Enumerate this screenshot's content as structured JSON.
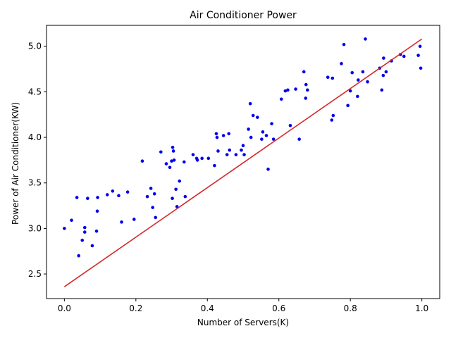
{
  "chart_data": {
    "type": "scatter",
    "title": "Air Conditioner Power",
    "xlabel": "Number of Servers(K)",
    "ylabel": "Power of Air Conditioner(KW)",
    "xlim": [
      -0.05,
      1.05
    ],
    "ylim": [
      2.23,
      5.23
    ],
    "xticks": [
      0.0,
      0.2,
      0.4,
      0.6,
      0.8,
      1.0
    ],
    "xtick_labels": [
      "0.0",
      "0.2",
      "0.4",
      "0.6",
      "0.8",
      "1.0"
    ],
    "yticks": [
      2.5,
      3.0,
      3.5,
      4.0,
      4.5,
      5.0
    ],
    "ytick_labels": [
      "2.5",
      "3.0",
      "3.5",
      "4.0",
      "4.5",
      "5.0"
    ],
    "grid": false,
    "legend": "none",
    "series": [
      {
        "kind": "scatter",
        "color": "#0000ee",
        "points": [
          [
            0.0,
            3.0
          ],
          [
            0.02,
            3.09
          ],
          [
            0.035,
            3.34
          ],
          [
            0.04,
            2.7
          ],
          [
            0.05,
            2.87
          ],
          [
            0.057,
            3.01
          ],
          [
            0.057,
            2.96
          ],
          [
            0.065,
            3.33
          ],
          [
            0.078,
            2.81
          ],
          [
            0.09,
            2.97
          ],
          [
            0.092,
            3.19
          ],
          [
            0.093,
            3.34
          ],
          [
            0.12,
            3.37
          ],
          [
            0.135,
            3.41
          ],
          [
            0.152,
            3.36
          ],
          [
            0.16,
            3.07
          ],
          [
            0.177,
            3.4
          ],
          [
            0.195,
            3.1
          ],
          [
            0.218,
            3.74
          ],
          [
            0.232,
            3.35
          ],
          [
            0.242,
            3.44
          ],
          [
            0.247,
            3.23
          ],
          [
            0.252,
            3.38
          ],
          [
            0.255,
            3.12
          ],
          [
            0.27,
            3.84
          ],
          [
            0.285,
            3.71
          ],
          [
            0.295,
            3.67
          ],
          [
            0.3,
            3.74
          ],
          [
            0.302,
            3.33
          ],
          [
            0.303,
            3.89
          ],
          [
            0.305,
            3.85
          ],
          [
            0.307,
            3.75
          ],
          [
            0.312,
            3.43
          ],
          [
            0.315,
            3.24
          ],
          [
            0.322,
            3.52
          ],
          [
            0.335,
            3.73
          ],
          [
            0.338,
            3.35
          ],
          [
            0.36,
            3.81
          ],
          [
            0.37,
            3.77
          ],
          [
            0.372,
            3.75
          ],
          [
            0.385,
            3.77
          ],
          [
            0.403,
            3.77
          ],
          [
            0.42,
            3.69
          ],
          [
            0.425,
            4.04
          ],
          [
            0.427,
            4.0
          ],
          [
            0.43,
            3.85
          ],
          [
            0.445,
            4.02
          ],
          [
            0.455,
            3.81
          ],
          [
            0.46,
            4.04
          ],
          [
            0.462,
            3.86
          ],
          [
            0.48,
            3.81
          ],
          [
            0.495,
            3.86
          ],
          [
            0.5,
            3.91
          ],
          [
            0.503,
            3.81
          ],
          [
            0.515,
            4.09
          ],
          [
            0.52,
            4.37
          ],
          [
            0.522,
            4.0
          ],
          [
            0.528,
            4.24
          ],
          [
            0.54,
            4.22
          ],
          [
            0.552,
            3.98
          ],
          [
            0.555,
            4.06
          ],
          [
            0.565,
            4.02
          ],
          [
            0.57,
            3.65
          ],
          [
            0.58,
            4.15
          ],
          [
            0.585,
            3.98
          ],
          [
            0.607,
            4.42
          ],
          [
            0.618,
            4.51
          ],
          [
            0.625,
            4.52
          ],
          [
            0.632,
            4.13
          ],
          [
            0.647,
            4.53
          ],
          [
            0.657,
            3.98
          ],
          [
            0.67,
            4.72
          ],
          [
            0.675,
            4.43
          ],
          [
            0.676,
            4.58
          ],
          [
            0.68,
            4.52
          ],
          [
            0.737,
            4.66
          ],
          [
            0.748,
            4.19
          ],
          [
            0.75,
            4.65
          ],
          [
            0.752,
            4.24
          ],
          [
            0.775,
            4.81
          ],
          [
            0.782,
            5.02
          ],
          [
            0.793,
            4.35
          ],
          [
            0.8,
            4.51
          ],
          [
            0.805,
            4.71
          ],
          [
            0.82,
            4.45
          ],
          [
            0.822,
            4.63
          ],
          [
            0.835,
            4.72
          ],
          [
            0.842,
            5.08
          ],
          [
            0.848,
            4.61
          ],
          [
            0.882,
            4.76
          ],
          [
            0.888,
            4.52
          ],
          [
            0.892,
            4.68
          ],
          [
            0.893,
            4.87
          ],
          [
            0.9,
            4.72
          ],
          [
            0.915,
            4.84
          ],
          [
            0.94,
            4.91
          ],
          [
            0.95,
            4.89
          ],
          [
            0.99,
            4.9
          ],
          [
            0.995,
            5.0
          ],
          [
            0.997,
            4.76
          ]
        ]
      },
      {
        "kind": "line",
        "color": "#d62728",
        "points": [
          [
            0.0,
            2.36
          ],
          [
            1.0,
            5.08
          ]
        ]
      }
    ]
  }
}
